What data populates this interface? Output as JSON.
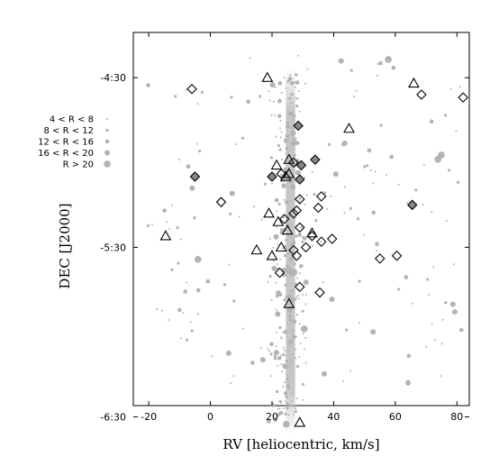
{
  "chart_data": {
    "type": "scatter",
    "xlabel": "RV [heliocentric, km/s]",
    "ylabel": "DEC [J2000]",
    "xlim": [
      -25,
      84
    ],
    "ylim": [
      -386,
      -254
    ],
    "y_unit": "arcmin (DEC = -4°00' + value)",
    "x_ticks": [
      -20,
      0,
      20,
      40,
      60,
      80
    ],
    "y_ticks": [
      {
        "value": -270,
        "label": "-4:30"
      },
      {
        "value": -330,
        "label": "-5:30"
      },
      {
        "value": -390,
        "label": "-6:30"
      }
    ],
    "colors": {
      "points": "#b3b3b3",
      "diamond_fill": "#888888",
      "marker_stroke": "#000000"
    },
    "legend": {
      "placement": "left, outside plot",
      "entries": [
        {
          "label": "4 < R < 8",
          "radius": 1
        },
        {
          "label": "8 < R < 12",
          "radius": 1.6
        },
        {
          "label": "12 < R < 16",
          "radius": 2.3
        },
        {
          "label": "16 < R < 20",
          "radius": 3.0
        },
        {
          "label": "R > 20",
          "radius": 3.8
        }
      ]
    },
    "series": [
      {
        "marker": "triangle-open",
        "points": [
          [
            18.5,
            -270
          ],
          [
            66,
            -272
          ],
          [
            45,
            -288
          ],
          [
            25.5,
            -299
          ],
          [
            21.5,
            -301
          ],
          [
            25.5,
            -304
          ],
          [
            19,
            -318
          ],
          [
            25,
            -324
          ],
          [
            22,
            -321
          ],
          [
            -14.5,
            -326
          ],
          [
            15,
            -331
          ],
          [
            20,
            -333
          ],
          [
            23,
            -330
          ],
          [
            25.5,
            -350
          ],
          [
            29,
            -392
          ],
          [
            33,
            -325
          ],
          [
            24.5,
            -305
          ]
        ]
      },
      {
        "marker": "diamond-open",
        "points": [
          [
            -6,
            -274
          ],
          [
            68.5,
            -276
          ],
          [
            82,
            -277
          ],
          [
            3.5,
            -314
          ],
          [
            36,
            -312
          ],
          [
            35,
            -316
          ],
          [
            24,
            -320
          ],
          [
            29,
            -313
          ],
          [
            27,
            -318
          ],
          [
            33,
            -326
          ],
          [
            36,
            -328
          ],
          [
            39.5,
            -327
          ],
          [
            27,
            -331
          ],
          [
            28,
            -333
          ],
          [
            29,
            -323
          ],
          [
            31,
            -330
          ],
          [
            22.5,
            -339
          ],
          [
            55,
            -334
          ],
          [
            60.5,
            -333
          ],
          [
            29,
            -344
          ],
          [
            35.5,
            -346
          ],
          [
            23,
            -304
          ],
          [
            27,
            -300
          ],
          [
            28,
            -317
          ]
        ]
      },
      {
        "marker": "diamond-filled",
        "points": [
          [
            -5,
            -305
          ],
          [
            20,
            -305
          ],
          [
            29,
            -306
          ],
          [
            34,
            -299
          ],
          [
            65.5,
            -315
          ],
          [
            29.5,
            -301
          ],
          [
            28.5,
            -287
          ]
        ]
      }
    ]
  }
}
